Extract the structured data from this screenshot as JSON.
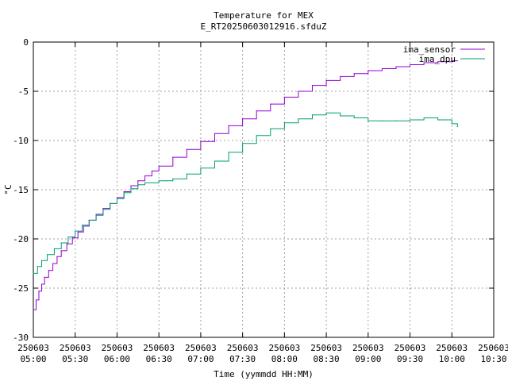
{
  "chart_data": {
    "type": "line",
    "title": "Temperature for MEX",
    "subtitle": "E_RT20250603012916.sfduZ",
    "xlabel": "Time (yymmdd HH:MM)",
    "ylabel": "°C",
    "ylim": [
      -30,
      0
    ],
    "yticks": [
      "0",
      "-5",
      "-10",
      "-15",
      "-20",
      "-25",
      "-30"
    ],
    "xlim": [
      "250603 05:00",
      "250603 10:30"
    ],
    "xticks": [
      {
        "date": "250603",
        "time": "05:00"
      },
      {
        "date": "250603",
        "time": "05:30"
      },
      {
        "date": "250603",
        "time": "06:00"
      },
      {
        "date": "250603",
        "time": "06:30"
      },
      {
        "date": "250603",
        "time": "07:00"
      },
      {
        "date": "250603",
        "time": "07:30"
      },
      {
        "date": "250603",
        "time": "08:00"
      },
      {
        "date": "250603",
        "time": "08:30"
      },
      {
        "date": "250603",
        "time": "09:00"
      },
      {
        "date": "250603",
        "time": "09:30"
      },
      {
        "date": "250603",
        "time": "10:00"
      },
      {
        "date": "250603",
        "time": "10:30"
      }
    ],
    "grid": true,
    "legend_position": "top-right",
    "series": [
      {
        "name": "ima_sensor",
        "color": "#9400d3",
        "x": [
          "05:00",
          "05:02",
          "05:04",
          "05:06",
          "05:08",
          "05:11",
          "05:14",
          "05:17",
          "05:20",
          "05:24",
          "05:28",
          "05:32",
          "05:36",
          "05:40",
          "05:45",
          "05:50",
          "05:55",
          "06:00",
          "06:05",
          "06:10",
          "06:15",
          "06:20",
          "06:25",
          "06:30",
          "06:40",
          "06:50",
          "07:00",
          "07:10",
          "07:20",
          "07:30",
          "07:40",
          "07:50",
          "08:00",
          "08:10",
          "08:20",
          "08:30",
          "08:40",
          "08:50",
          "09:00",
          "09:10",
          "09:20",
          "09:30",
          "09:40",
          "09:50",
          "10:00",
          "10:04"
        ],
        "values": [
          -27.2,
          -26.2,
          -25.3,
          -24.6,
          -23.9,
          -23.2,
          -22.5,
          -21.8,
          -21.2,
          -20.5,
          -19.9,
          -19.3,
          -18.7,
          -18.1,
          -17.5,
          -16.9,
          -16.4,
          -15.8,
          -15.2,
          -14.6,
          -14.1,
          -13.6,
          -13.1,
          -12.6,
          -11.7,
          -10.9,
          -10.1,
          -9.3,
          -8.5,
          -7.8,
          -7.0,
          -6.3,
          -5.6,
          -5.0,
          -4.4,
          -3.9,
          -3.5,
          -3.2,
          -2.9,
          -2.7,
          -2.5,
          -2.3,
          -2.1,
          -2.0,
          -1.9,
          -1.9
        ]
      },
      {
        "name": "ima_dpu",
        "color": "#009e73",
        "x": [
          "05:00",
          "05:03",
          "05:06",
          "05:10",
          "05:15",
          "05:20",
          "05:25",
          "05:30",
          "05:35",
          "05:40",
          "05:45",
          "05:50",
          "05:55",
          "06:00",
          "06:05",
          "06:10",
          "06:15",
          "06:20",
          "06:30",
          "06:35",
          "06:40",
          "06:50",
          "07:00",
          "07:10",
          "07:20",
          "07:30",
          "07:40",
          "07:50",
          "08:00",
          "08:10",
          "08:20",
          "08:30",
          "08:35",
          "08:40",
          "08:50",
          "09:00",
          "09:10",
          "09:20",
          "09:30",
          "09:40",
          "09:50",
          "10:00",
          "10:04"
        ],
        "values": [
          -23.5,
          -22.8,
          -22.2,
          -21.6,
          -21.0,
          -20.4,
          -19.8,
          -19.2,
          -18.6,
          -18.1,
          -17.6,
          -17.0,
          -16.4,
          -15.9,
          -15.3,
          -14.9,
          -14.5,
          -14.3,
          -14.1,
          -14.1,
          -13.9,
          -13.4,
          -12.8,
          -12.1,
          -11.2,
          -10.3,
          -9.5,
          -8.8,
          -8.2,
          -7.8,
          -7.4,
          -7.2,
          -7.2,
          -7.5,
          -7.7,
          -8.0,
          -8.0,
          -8.0,
          -7.9,
          -7.7,
          -7.9,
          -8.3,
          -8.6
        ]
      }
    ]
  }
}
